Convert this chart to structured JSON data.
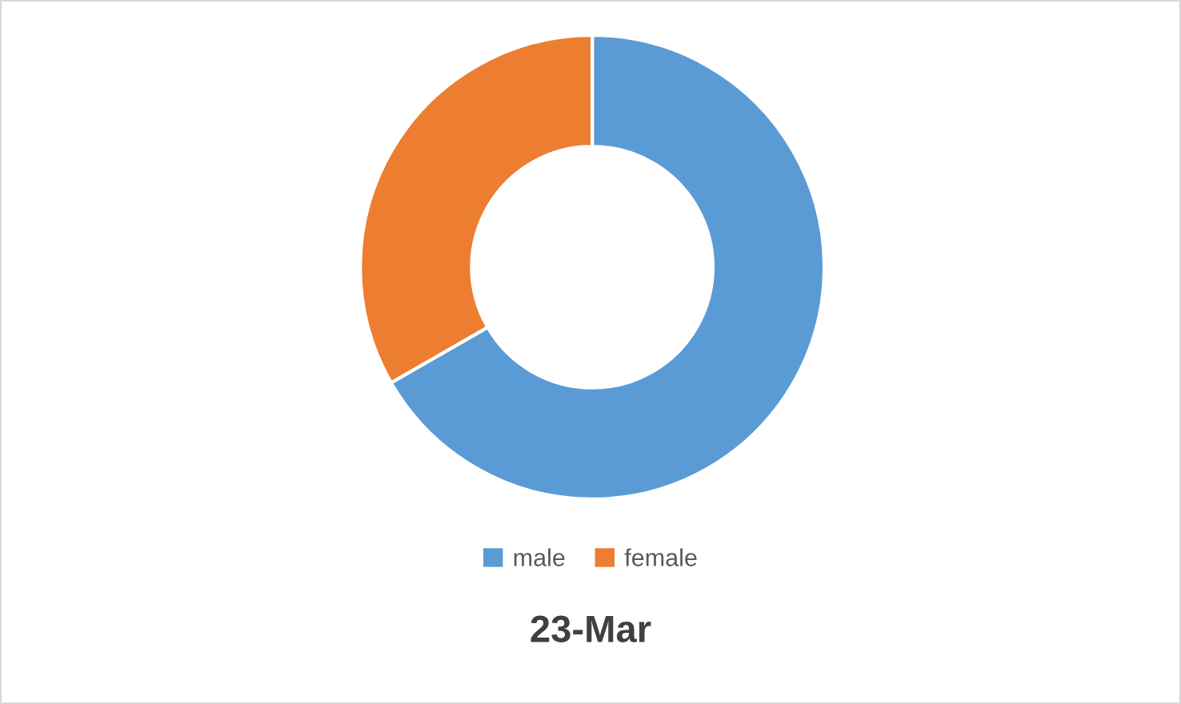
{
  "chart_data": {
    "type": "donut",
    "title": "23-Mar",
    "categories": [
      "male",
      "female"
    ],
    "values": [
      66.7,
      33.3
    ],
    "colors": [
      "#5b9bd5",
      "#ed7d31"
    ],
    "legend": "bottom"
  }
}
